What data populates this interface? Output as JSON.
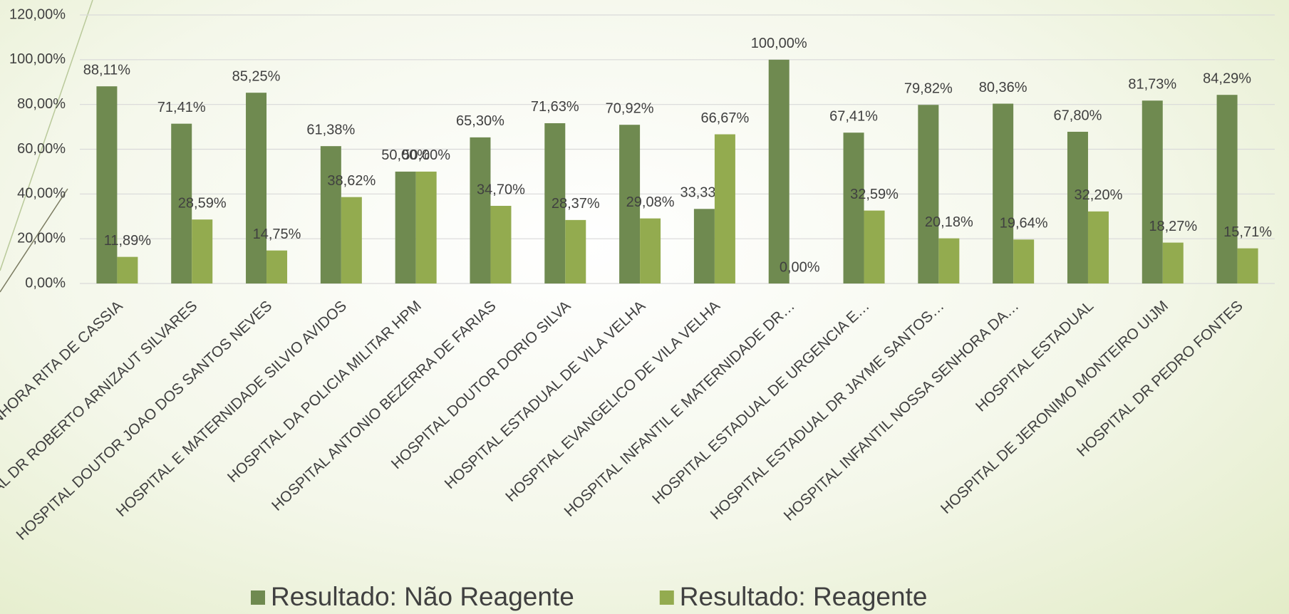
{
  "chart_data": {
    "type": "bar",
    "categories": [
      "HOSPITAL NOSSA SENHORA RITA DE CASSIA",
      "HOSPITAL DR ROBERTO ARNIZAUT SILVARES",
      "HOSPITAL DOUTOR JOAO DOS SANTOS NEVES",
      "HOSPITAL E MATERNIDADE SILVIO AVIDOS",
      "HOSPITAL DA POLICIA MILITAR HPM",
      "HOSPITAL ANTONIO BEZERRA DE FARIAS",
      "HOSPITAL DOUTOR DORIO SILVA",
      "HOSPITAL ESTADUAL DE VILA VELHA",
      "HOSPITAL EVANGELICO DE VILA VELHA",
      "HOSPITAL INFANTIL E MATERNIDADE DR…",
      "HOSPITAL ESTADUAL DE URGENCIA E…",
      "HOSPITAL ESTADUAL DR JAYME SANTOS…",
      "HOSPITAL INFANTIL NOSSA SENHORA DA…",
      "HOSPITAL ESTADUAL",
      "HOSPITAL DE JERONIMO MONTEIRO UIJM",
      "HOSPITAL DR PEDRO FONTES"
    ],
    "series": [
      {
        "name": "Resultado: Não Reagente",
        "color": "#6f8a50",
        "values": [
          88.11,
          71.41,
          85.25,
          61.38,
          50,
          65.3,
          71.63,
          70.92,
          33.33,
          100,
          67.41,
          79.82,
          80.36,
          67.8,
          81.73,
          84.29
        ],
        "value_labels": [
          "88,11%",
          "71,41%",
          "85,25%",
          "61,38%",
          "50,00%",
          "65,30%",
          "71,63%",
          "70,92%",
          "33,33%",
          "100,00%",
          "67,41%",
          "79,82%",
          "80,36%",
          "67,80%",
          "81,73%",
          "84,29%"
        ]
      },
      {
        "name": "Resultado: Reagente",
        "color": "#93ab4f",
        "values": [
          11.89,
          28.59,
          14.75,
          38.62,
          50,
          34.7,
          28.37,
          29.08,
          66.67,
          0,
          32.59,
          20.18,
          19.64,
          32.2,
          18.27,
          15.71
        ],
        "value_labels": [
          "11,89%",
          "28,59%",
          "14,75%",
          "38,62%",
          "50,00%",
          "34,70%",
          "28,37%",
          "29,08%",
          "66,67%",
          "0,00%",
          "32,59%",
          "20,18%",
          "19,64%",
          "32,20%",
          "18,27%",
          "15,71%"
        ]
      }
    ],
    "ylim": [
      0,
      120
    ],
    "yticks": [
      {
        "value": 0,
        "label": "0,00%"
      },
      {
        "value": 20,
        "label": "20,00%"
      },
      {
        "value": 40,
        "label": "40,00%"
      },
      {
        "value": 60,
        "label": "60,00%"
      },
      {
        "value": 80,
        "label": "80,00%"
      },
      {
        "value": 100,
        "label": "100,00%"
      },
      {
        "value": 120,
        "label": "120,00%"
      }
    ],
    "grid": true,
    "legend": "bottom"
  }
}
